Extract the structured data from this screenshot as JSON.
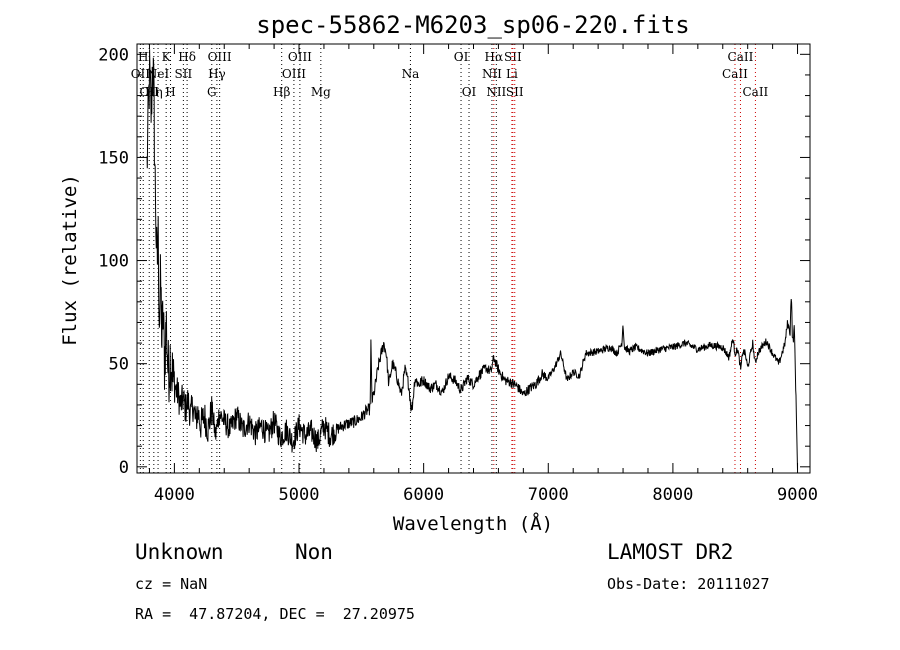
{
  "chart_data": {
    "type": "line",
    "title": "spec-55862-M6203_sp06-220.fits",
    "xlabel": "Wavelength (Å)",
    "ylabel": "Flux (relative)",
    "xlim": [
      3700,
      9100
    ],
    "ylim": [
      -3,
      205
    ],
    "xticks": [
      4000,
      5000,
      6000,
      7000,
      8000,
      9000
    ],
    "yticks": [
      0,
      50,
      100,
      150,
      200
    ],
    "grid": false,
    "line_color": "#000000",
    "series": [
      {
        "x": [
          3780,
          3800,
          3815,
          3825,
          3835,
          3845,
          3852,
          3860,
          3870,
          3880,
          3890,
          3900,
          3910,
          3920,
          3935,
          3950,
          3970,
          3990,
          4010,
          4030,
          4050,
          4070,
          4090,
          4110,
          4130,
          4150,
          4170,
          4190,
          4210,
          4240,
          4270,
          4300,
          4330,
          4360,
          4400,
          4450,
          4500,
          4550,
          4600,
          4650,
          4700,
          4750,
          4800,
          4850,
          4900,
          4950,
          5000,
          5050,
          5100,
          5150,
          5200,
          5250,
          5300,
          5350,
          5400,
          5450,
          5500,
          5540,
          5570,
          5577,
          5585,
          5600,
          5640,
          5680,
          5700,
          5720,
          5750,
          5780,
          5820,
          5850,
          5880,
          5900,
          5910,
          5930,
          5960,
          6000,
          6050,
          6100,
          6150,
          6200,
          6250,
          6300,
          6350,
          6400,
          6450,
          6500,
          6540,
          6563,
          6600,
          6650,
          6700,
          6750,
          6800,
          6850,
          6900,
          6950,
          7000,
          7050,
          7100,
          7150,
          7200,
          7250,
          7300,
          7400,
          7500,
          7550,
          7590,
          7600,
          7610,
          7650,
          7700,
          7800,
          7900,
          8000,
          8100,
          8200,
          8300,
          8400,
          8450,
          8480,
          8500,
          8520,
          8545,
          8560,
          8580,
          8600,
          8640,
          8660,
          8680,
          8700,
          8750,
          8800,
          8850,
          8900,
          8920,
          8940,
          8950,
          8960,
          8975,
          8985,
          9000
        ],
        "y": [
          145,
          190,
          170,
          200,
          180,
          140,
          120,
          95,
          110,
          70,
          90,
          60,
          75,
          50,
          70,
          45,
          55,
          40,
          38,
          35,
          30,
          33,
          28,
          32,
          25,
          30,
          22,
          27,
          20,
          25,
          18,
          28,
          15,
          26,
          22,
          18,
          25,
          18,
          22,
          16,
          20,
          15,
          22,
          14,
          18,
          12,
          20,
          15,
          17,
          12,
          20,
          15,
          18,
          20,
          21,
          22,
          24,
          27,
          28,
          60,
          32,
          35,
          50,
          60,
          55,
          40,
          50,
          45,
          35,
          47,
          40,
          28,
          30,
          43,
          40,
          42,
          38,
          40,
          36,
          44,
          42,
          37,
          43,
          40,
          45,
          48,
          46,
          53,
          47,
          42,
          41,
          39,
          35,
          38,
          40,
          45,
          43,
          48,
          55,
          42,
          46,
          44,
          55,
          56,
          58,
          55,
          60,
          70,
          58,
          56,
          58,
          55,
          57,
          58,
          60,
          57,
          59,
          58,
          53,
          62,
          55,
          57,
          47,
          56,
          55,
          48,
          60,
          50,
          55,
          57,
          61,
          55,
          50,
          60,
          70,
          65,
          85,
          60,
          67,
          40,
          0
        ]
      }
    ],
    "lines": [
      {
        "w": 3727,
        "color": "#000000",
        "labels": [
          {
            "text": "OII",
            "row": 2
          }
        ]
      },
      {
        "w": 3750,
        "color": "#000000",
        "labels": [
          {
            "text": "H",
            "row": 1
          }
        ]
      },
      {
        "w": 3798,
        "color": "#000000",
        "labels": [
          {
            "text": "OII",
            "row": 3
          }
        ]
      },
      {
        "w": 3835,
        "color": "#000000",
        "labels": [
          {
            "text": "Hη",
            "row": 3
          }
        ]
      },
      {
        "w": 3869,
        "color": "#000000",
        "labels": [
          {
            "text": "NeI",
            "row": 2
          }
        ]
      },
      {
        "w": 3934,
        "color": "#000000",
        "labels": [
          {
            "text": "K",
            "row": 1
          }
        ]
      },
      {
        "w": 3969,
        "color": "#000000",
        "labels": [
          {
            "text": "H",
            "row": 3
          }
        ]
      },
      {
        "w": 4072,
        "color": "#000000",
        "labels": [
          {
            "text": "SII",
            "row": 2
          }
        ]
      },
      {
        "w": 4102,
        "color": "#000000",
        "labels": [
          {
            "text": "Hδ",
            "row": 1
          }
        ]
      },
      {
        "w": 4300,
        "color": "#000000",
        "labels": [
          {
            "text": "G",
            "row": 3
          }
        ]
      },
      {
        "w": 4341,
        "color": "#000000",
        "labels": [
          {
            "text": "Hγ",
            "row": 2
          }
        ]
      },
      {
        "w": 4363,
        "color": "#000000",
        "labels": [
          {
            "text": "OIII",
            "row": 1
          }
        ]
      },
      {
        "w": 4861,
        "color": "#000000",
        "labels": [
          {
            "text": "Hβ",
            "row": 3
          }
        ]
      },
      {
        "w": 4959,
        "color": "#000000",
        "labels": [
          {
            "text": "OIII",
            "row": 2
          }
        ]
      },
      {
        "w": 5007,
        "color": "#000000",
        "labels": [
          {
            "text": "OIII",
            "row": 1
          }
        ]
      },
      {
        "w": 5175,
        "color": "#000000",
        "labels": [
          {
            "text": "Mg",
            "row": 3
          }
        ]
      },
      {
        "w": 5894,
        "color": "#000000",
        "labels": [
          {
            "text": "Na",
            "row": 2
          }
        ]
      },
      {
        "w": 6300,
        "color": "#000000",
        "labels": [
          {
            "text": "OI",
            "row": 1
          }
        ]
      },
      {
        "w": 6364,
        "color": "#000000",
        "labels": [
          {
            "text": "OI",
            "row": 3
          }
        ]
      },
      {
        "w": 6548,
        "color": "#000000",
        "labels": [
          {
            "text": "NII",
            "row": 2
          }
        ]
      },
      {
        "w": 6563,
        "color": "#cc0000",
        "labels": [
          {
            "text": "Hα",
            "row": 1
          }
        ]
      },
      {
        "w": 6583,
        "color": "#000000",
        "labels": [
          {
            "text": "NII",
            "row": 3
          }
        ]
      },
      {
        "w": 6708,
        "color": "#cc0000",
        "labels": [
          {
            "text": "Li",
            "row": 2
          }
        ]
      },
      {
        "w": 6716,
        "color": "#cc0000",
        "labels": [
          {
            "text": "SII",
            "row": 1
          }
        ]
      },
      {
        "w": 6731,
        "color": "#cc0000",
        "labels": [
          {
            "text": "SII",
            "row": 3
          }
        ]
      },
      {
        "w": 8498,
        "color": "#cc0000",
        "labels": [
          {
            "text": "CaII",
            "row": 2
          }
        ]
      },
      {
        "w": 8542,
        "color": "#cc0000",
        "labels": [
          {
            "text": "CaII",
            "row": 1
          }
        ]
      },
      {
        "w": 8662,
        "color": "#cc0000",
        "labels": [
          {
            "text": "CaII",
            "row": 3
          }
        ]
      }
    ]
  },
  "info": {
    "classification": "Unknown",
    "subclass": "Non",
    "survey": "LAMOST DR2",
    "cz": "cz = NaN",
    "obs_date": "Obs-Date: 20111027",
    "coords": "RA =  47.87204, DEC =  27.20975"
  }
}
